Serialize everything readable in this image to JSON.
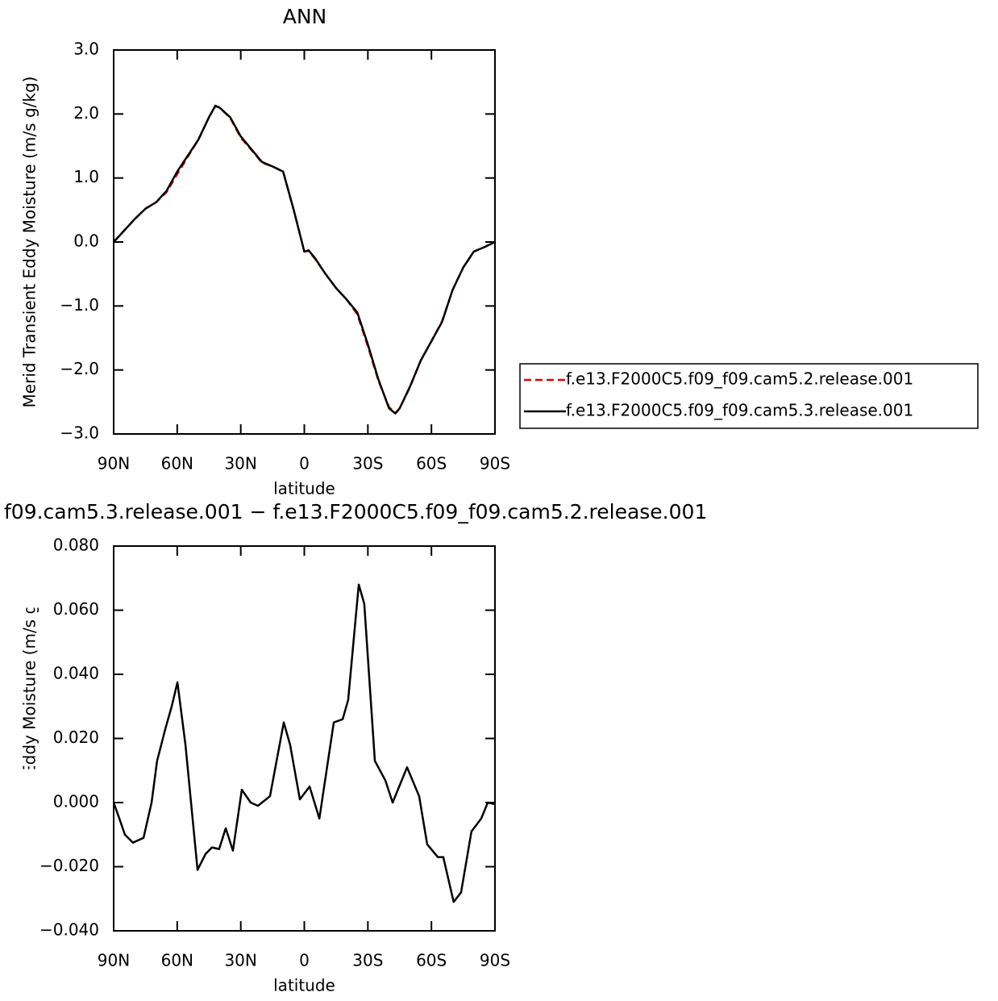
{
  "chart_data": [
    {
      "type": "line",
      "title": "ANN",
      "xlabel": "latitude",
      "ylabel": "Merid Transient Eddy Moisture (m/s g/kg)",
      "xlim": [
        90,
        -90
      ],
      "xticks": [
        {
          "value": 90,
          "label": "90N"
        },
        {
          "value": 60,
          "label": "60N"
        },
        {
          "value": 30,
          "label": "30N"
        },
        0,
        {
          "value": -30,
          "label": "30S"
        },
        {
          "value": -60,
          "label": "60S"
        },
        {
          "value": -90,
          "label": "90S"
        }
      ],
      "ylim": [
        -3,
        3
      ],
      "yticks": [
        {
          "value": 3,
          "label": "3.0"
        },
        {
          "value": 2,
          "label": "2.0"
        },
        {
          "value": 1,
          "label": "1.0"
        },
        {
          "value": 0,
          "label": "0.0"
        },
        {
          "value": -1,
          "label": "−1.0"
        },
        {
          "value": -2,
          "label": "−2.0"
        },
        {
          "value": -3,
          "label": "−3.0"
        }
      ],
      "legend": "right",
      "x": [
        90,
        85,
        80,
        75,
        70,
        65,
        60,
        55,
        50,
        45,
        42,
        40,
        35,
        30,
        25,
        20,
        15,
        10,
        5,
        0,
        -2,
        -5,
        -10,
        -15,
        -20,
        -25,
        -30,
        -35,
        -40,
        -43,
        -45,
        -50,
        -55,
        -60,
        -65,
        -70,
        -75,
        -80,
        -85,
        -90
      ],
      "series": [
        {
          "name": "f.e13.F2000C5.f09_f09.cam5.2.release.001",
          "color": "#e00000",
          "dash": true,
          "values": [
            0,
            0.18,
            0.36,
            0.52,
            0.62,
            0.78,
            1.06,
            1.33,
            1.6,
            1.95,
            2.12,
            2.1,
            1.94,
            1.63,
            1.44,
            1.24,
            1.18,
            1.1,
            0.5,
            -0.15,
            -0.14,
            -0.26,
            -0.5,
            -0.72,
            -0.9,
            -1.13,
            -1.63,
            -2.17,
            -2.58,
            -2.67,
            -2.6,
            -2.26,
            -1.85,
            -1.55,
            -1.24,
            -0.75,
            -0.4,
            -0.15,
            -0.08,
            0
          ]
        },
        {
          "name": "f.e13.F2000C5.f09_f09.cam5.3.release.001",
          "color": "#000000",
          "dash": false,
          "values": [
            0,
            0.18,
            0.36,
            0.52,
            0.62,
            0.8,
            1.1,
            1.35,
            1.6,
            1.95,
            2.13,
            2.1,
            1.95,
            1.65,
            1.45,
            1.25,
            1.18,
            1.1,
            0.5,
            -0.15,
            -0.13,
            -0.25,
            -0.5,
            -0.72,
            -0.9,
            -1.1,
            -1.6,
            -2.15,
            -2.6,
            -2.68,
            -2.6,
            -2.25,
            -1.85,
            -1.55,
            -1.25,
            -0.75,
            -0.4,
            -0.15,
            -0.08,
            0
          ]
        }
      ]
    },
    {
      "type": "line",
      "title": "f09.cam5.3.release.001 − f.e13.F2000C5.f09_f09.cam5.2.release.001",
      "xlabel": "latitude",
      "ylabel": "Merid Transient Eddy Moisture (m/s g/kg)",
      "xlim": [
        90,
        -90
      ],
      "xticks": [
        {
          "value": 90,
          "label": "90N"
        },
        {
          "value": 60,
          "label": "60N"
        },
        {
          "value": 30,
          "label": "30N"
        },
        0,
        {
          "value": -30,
          "label": "30S"
        },
        {
          "value": -60,
          "label": "60S"
        },
        {
          "value": -90,
          "label": "90S"
        }
      ],
      "ylim": [
        -0.04,
        0.08
      ],
      "yticks": [
        {
          "value": 0.08,
          "label": "0.080"
        },
        {
          "value": 0.06,
          "label": "0.060"
        },
        {
          "value": 0.04,
          "label": "0.040"
        },
        {
          "value": 0.02,
          "label": "0.020"
        },
        {
          "value": 0,
          "label": "0.000"
        },
        {
          "value": -0.02,
          "label": "−0.020"
        },
        {
          "value": -0.04,
          "label": "−0.040"
        }
      ],
      "x": [
        90,
        87.3,
        84.7,
        80.9,
        75.9,
        72.1,
        69.5,
        65.6,
        62.6,
        59.9,
        56.1,
        50.4,
        46.6,
        43.6,
        40.2,
        37.1,
        33.7,
        29.5,
        25.3,
        21.9,
        16.2,
        9.7,
        6.7,
        2.1,
        -2.5,
        -7.1,
        -13.9,
        -18.1,
        -20.7,
        -25.7,
        -28.3,
        -33.3,
        -38.2,
        -41.7,
        -48.5,
        -54.2,
        -58,
        -63,
        -65.6,
        -70.5,
        -74,
        -78.9,
        -83.5,
        -86.6,
        -90
      ],
      "series": [
        {
          "color": "#000000",
          "dash": false,
          "values": [
            0,
            -0.005,
            -0.01,
            -0.0125,
            -0.011,
            0,
            0.013,
            0.023,
            0.03,
            0.0375,
            0.018,
            -0.021,
            -0.016,
            -0.014,
            -0.0145,
            -0.008,
            -0.015,
            0.004,
            0,
            -0.001,
            0.002,
            0.025,
            0.018,
            0.001,
            0.005,
            -0.005,
            0.025,
            0.026,
            0.032,
            0.068,
            0.062,
            0.013,
            0.007,
            0,
            0.011,
            0.002,
            -0.013,
            -0.017,
            -0.017,
            -0.031,
            -0.028,
            -0.009,
            -0.005,
            0,
            -0.0005
          ]
        }
      ]
    }
  ]
}
